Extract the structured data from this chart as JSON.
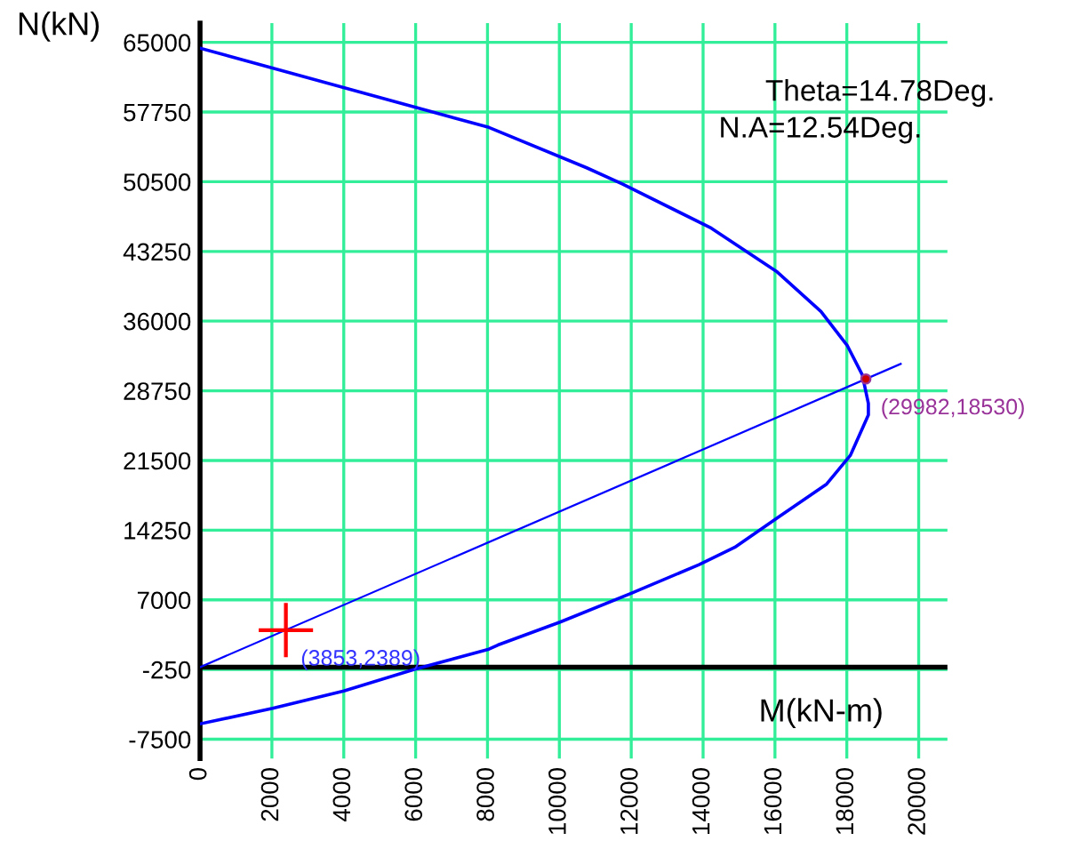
{
  "chart_data": {
    "type": "line",
    "xlabel": "M(kN-m)",
    "ylabel": "N(kN)",
    "xlim": [
      0,
      20800
    ],
    "ylim": [
      -9500,
      67000
    ],
    "xticks": [
      0,
      2000,
      4000,
      6000,
      8000,
      10000,
      12000,
      14000,
      16000,
      18000,
      20000
    ],
    "yticks": [
      65000,
      57750,
      50500,
      43250,
      36000,
      28750,
      21500,
      14250,
      7000,
      -250,
      -7500
    ],
    "grid": true,
    "legend": false,
    "series": [
      {
        "color": "#0000ff",
        "x": [
          0,
          8040,
          10760,
          11750,
          14230,
          16040,
          17280,
          18020,
          18430,
          18600,
          18600,
          18100,
          17440,
          16040,
          14880,
          13890,
          12000,
          10020,
          8290,
          8040,
          5980,
          4000,
          2020,
          0
        ],
        "values": [
          64400,
          56150,
          51950,
          50280,
          45670,
          41180,
          37000,
          33410,
          30410,
          27430,
          26230,
          22040,
          19050,
          15460,
          12460,
          10670,
          7680,
          4690,
          2300,
          1870,
          -210,
          -2490,
          -4290,
          -5900
        ]
      },
      {
        "color": "#0000ff",
        "x": [
          0,
          19500
        ],
        "values": [
          0,
          31550
        ]
      },
      {
        "type": "scatter",
        "color": "#cc0000",
        "marker": "circle",
        "x": [
          18530
        ],
        "values": [
          29982
        ]
      },
      {
        "type": "scatter",
        "color": "#ff0000",
        "marker": "cross",
        "x": [
          2389
        ],
        "values": [
          3853
        ]
      }
    ],
    "ref_lines": [
      {
        "axis": "y",
        "value": 0,
        "color": "#000000"
      }
    ],
    "annotations": [
      "Theta=14.78Deg.",
      "N.A=12.54Deg.",
      {
        "text": "(29982,18530)",
        "x": 18530,
        "y": 29982
      },
      {
        "text": "(3853,2389)",
        "x": 2389,
        "y": 3853
      }
    ]
  }
}
